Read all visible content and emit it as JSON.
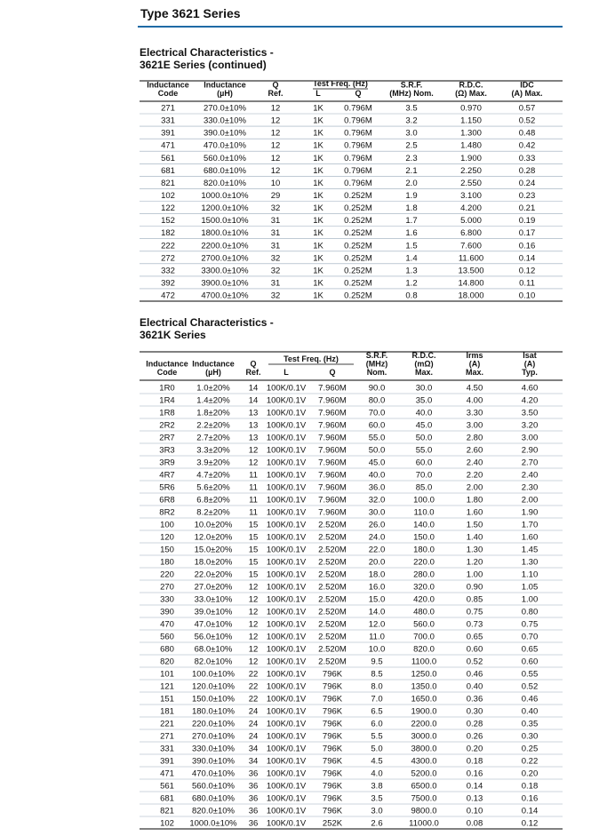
{
  "header": {
    "title": "Type 3621 Series"
  },
  "tables": [
    {
      "title": [
        "Electrical Characteristics -",
        "3621E Series (continued)"
      ],
      "headers_left": [
        [
          "Inductance",
          "Code"
        ],
        [
          "Inductance",
          "(µH)"
        ],
        [
          "Q",
          "Ref."
        ]
      ],
      "freq_header": {
        "title": "Test Freq. (Hz)",
        "sub": [
          "L",
          "Q"
        ]
      },
      "headers_right": [
        [
          "S.R.F.",
          "(MHz) Nom."
        ],
        [
          "R.D.C.",
          "(Ω) Max."
        ],
        [
          "IDC",
          "(A) Max."
        ]
      ],
      "rows": [
        [
          "271",
          "270.0±10%",
          "12",
          "1K",
          "0.796M",
          "3.5",
          "0.970",
          "0.57"
        ],
        [
          "331",
          "330.0±10%",
          "12",
          "1K",
          "0.796M",
          "3.2",
          "1.150",
          "0.52"
        ],
        [
          "391",
          "390.0±10%",
          "12",
          "1K",
          "0.796M",
          "3.0",
          "1.300",
          "0.48"
        ],
        [
          "471",
          "470.0±10%",
          "12",
          "1K",
          "0.796M",
          "2.5",
          "1.480",
          "0.42"
        ],
        [
          "561",
          "560.0±10%",
          "12",
          "1K",
          "0.796M",
          "2.3",
          "1.900",
          "0.33"
        ],
        [
          "681",
          "680.0±10%",
          "12",
          "1K",
          "0.796M",
          "2.1",
          "2.250",
          "0.28"
        ],
        [
          "821",
          "820.0±10%",
          "10",
          "1K",
          "0.796M",
          "2.0",
          "2.550",
          "0.24"
        ],
        [
          "102",
          "1000.0±10%",
          "29",
          "1K",
          "0.252M",
          "1.9",
          "3.100",
          "0.23"
        ],
        [
          "122",
          "1200.0±10%",
          "32",
          "1K",
          "0.252M",
          "1.8",
          "4.200",
          "0.21"
        ],
        [
          "152",
          "1500.0±10%",
          "31",
          "1K",
          "0.252M",
          "1.7",
          "5.000",
          "0.19"
        ],
        [
          "182",
          "1800.0±10%",
          "31",
          "1K",
          "0.252M",
          "1.6",
          "6.800",
          "0.17"
        ],
        [
          "222",
          "2200.0±10%",
          "31",
          "1K",
          "0.252M",
          "1.5",
          "7.600",
          "0.16"
        ],
        [
          "272",
          "2700.0±10%",
          "32",
          "1K",
          "0.252M",
          "1.4",
          "11.600",
          "0.14"
        ],
        [
          "332",
          "3300.0±10%",
          "32",
          "1K",
          "0.252M",
          "1.3",
          "13.500",
          "0.12"
        ],
        [
          "392",
          "3900.0±10%",
          "31",
          "1K",
          "0.252M",
          "1.2",
          "14.800",
          "0.11"
        ],
        [
          "472",
          "4700.0±10%",
          "32",
          "1K",
          "0.252M",
          "0.8",
          "18.000",
          "0.10"
        ]
      ]
    },
    {
      "title": [
        "Electrical Characteristics -",
        "3621K Series"
      ],
      "headers_left": [
        [
          "Inductance",
          "Code"
        ],
        [
          "Inductance",
          "(µH)"
        ],
        [
          "Q",
          "Ref."
        ]
      ],
      "freq_header": {
        "title": "Test Freq. (Hz)",
        "sub": [
          "L",
          "Q"
        ]
      },
      "headers_right": [
        [
          "S.R.F.",
          "(MHz)",
          "Nom."
        ],
        [
          "R.D.C.",
          "(mΩ)",
          "Max."
        ],
        [
          "Irms",
          "(A)",
          "Max."
        ],
        [
          "Isat",
          "(A)",
          "Typ."
        ]
      ],
      "rows": [
        [
          "1R0",
          "1.0±20%",
          "14",
          "100K/0.1V",
          "7.960M",
          "90.0",
          "30.0",
          "4.50",
          "4.60"
        ],
        [
          "1R4",
          "1.4±20%",
          "14",
          "100K/0.1V",
          "7.960M",
          "80.0",
          "35.0",
          "4.00",
          "4.20"
        ],
        [
          "1R8",
          "1.8±20%",
          "13",
          "100K/0.1V",
          "7.960M",
          "70.0",
          "40.0",
          "3.30",
          "3.50"
        ],
        [
          "2R2",
          "2.2±20%",
          "13",
          "100K/0.1V",
          "7.960M",
          "60.0",
          "45.0",
          "3.00",
          "3.20"
        ],
        [
          "2R7",
          "2.7±20%",
          "13",
          "100K/0.1V",
          "7.960M",
          "55.0",
          "50.0",
          "2.80",
          "3.00"
        ],
        [
          "3R3",
          "3.3±20%",
          "12",
          "100K/0.1V",
          "7.960M",
          "50.0",
          "55.0",
          "2.60",
          "2.90"
        ],
        [
          "3R9",
          "3.9±20%",
          "12",
          "100K/0.1V",
          "7.960M",
          "45.0",
          "60.0",
          "2.40",
          "2.70"
        ],
        [
          "4R7",
          "4.7±20%",
          "11",
          "100K/0.1V",
          "7.960M",
          "40.0",
          "70.0",
          "2.20",
          "2.40"
        ],
        [
          "5R6",
          "5.6±20%",
          "11",
          "100K/0.1V",
          "7.960M",
          "36.0",
          "85.0",
          "2.00",
          "2.30"
        ],
        [
          "6R8",
          "6.8±20%",
          "11",
          "100K/0.1V",
          "7.960M",
          "32.0",
          "100.0",
          "1.80",
          "2.00"
        ],
        [
          "8R2",
          "8.2±20%",
          "11",
          "100K/0.1V",
          "7.960M",
          "30.0",
          "110.0",
          "1.60",
          "1.90"
        ],
        [
          "100",
          "10.0±20%",
          "15",
          "100K/0.1V",
          "2.520M",
          "26.0",
          "140.0",
          "1.50",
          "1.70"
        ],
        [
          "120",
          "12.0±20%",
          "15",
          "100K/0.1V",
          "2.520M",
          "24.0",
          "150.0",
          "1.40",
          "1.60"
        ],
        [
          "150",
          "15.0±20%",
          "15",
          "100K/0.1V",
          "2.520M",
          "22.0",
          "180.0",
          "1.30",
          "1.45"
        ],
        [
          "180",
          "18.0±20%",
          "15",
          "100K/0.1V",
          "2.520M",
          "20.0",
          "220.0",
          "1.20",
          "1.30"
        ],
        [
          "220",
          "22.0±20%",
          "15",
          "100K/0.1V",
          "2.520M",
          "18.0",
          "280.0",
          "1.00",
          "1.10"
        ],
        [
          "270",
          "27.0±20%",
          "12",
          "100K/0.1V",
          "2.520M",
          "16.0",
          "320.0",
          "0.90",
          "1.05"
        ],
        [
          "330",
          "33.0±10%",
          "12",
          "100K/0.1V",
          "2.520M",
          "15.0",
          "420.0",
          "0.85",
          "1.00"
        ],
        [
          "390",
          "39.0±10%",
          "12",
          "100K/0.1V",
          "2.520M",
          "14.0",
          "480.0",
          "0.75",
          "0.80"
        ],
        [
          "470",
          "47.0±10%",
          "12",
          "100K/0.1V",
          "2.520M",
          "12.0",
          "560.0",
          "0.73",
          "0.75"
        ],
        [
          "560",
          "56.0±10%",
          "12",
          "100K/0.1V",
          "2.520M",
          "11.0",
          "700.0",
          "0.65",
          "0.70"
        ],
        [
          "680",
          "68.0±10%",
          "12",
          "100K/0.1V",
          "2.520M",
          "10.0",
          "820.0",
          "0.60",
          "0.65"
        ],
        [
          "820",
          "82.0±10%",
          "12",
          "100K/0.1V",
          "2.520M",
          "9.5",
          "1100.0",
          "0.52",
          "0.60"
        ],
        [
          "101",
          "100.0±10%",
          "22",
          "100K/0.1V",
          "796K",
          "8.5",
          "1250.0",
          "0.46",
          "0.55"
        ],
        [
          "121",
          "120.0±10%",
          "22",
          "100K/0.1V",
          "796K",
          "8.0",
          "1350.0",
          "0.40",
          "0.52"
        ],
        [
          "151",
          "150.0±10%",
          "22",
          "100K/0.1V",
          "796K",
          "7.0",
          "1650.0",
          "0.36",
          "0.46"
        ],
        [
          "181",
          "180.0±10%",
          "24",
          "100K/0.1V",
          "796K",
          "6.5",
          "1900.0",
          "0.30",
          "0.40"
        ],
        [
          "221",
          "220.0±10%",
          "24",
          "100K/0.1V",
          "796K",
          "6.0",
          "2200.0",
          "0.28",
          "0.35"
        ],
        [
          "271",
          "270.0±10%",
          "24",
          "100K/0.1V",
          "796K",
          "5.5",
          "3000.0",
          "0.26",
          "0.30"
        ],
        [
          "331",
          "330.0±10%",
          "34",
          "100K/0.1V",
          "796K",
          "5.0",
          "3800.0",
          "0.20",
          "0.25"
        ],
        [
          "391",
          "390.0±10%",
          "34",
          "100K/0.1V",
          "796K",
          "4.5",
          "4300.0",
          "0.18",
          "0.22"
        ],
        [
          "471",
          "470.0±10%",
          "36",
          "100K/0.1V",
          "796K",
          "4.0",
          "5200.0",
          "0.16",
          "0.20"
        ],
        [
          "561",
          "560.0±10%",
          "36",
          "100K/0.1V",
          "796K",
          "3.8",
          "6500.0",
          "0.14",
          "0.18"
        ],
        [
          "681",
          "680.0±10%",
          "36",
          "100K/0.1V",
          "796K",
          "3.5",
          "7500.0",
          "0.13",
          "0.16"
        ],
        [
          "821",
          "820.0±10%",
          "36",
          "100K/0.1V",
          "796K",
          "3.0",
          "9800.0",
          "0.10",
          "0.14"
        ],
        [
          "102",
          "1000.0±10%",
          "36",
          "100K/0.1V",
          "252K",
          "2.6",
          "11000.0",
          "0.08",
          "0.12"
        ]
      ]
    }
  ]
}
